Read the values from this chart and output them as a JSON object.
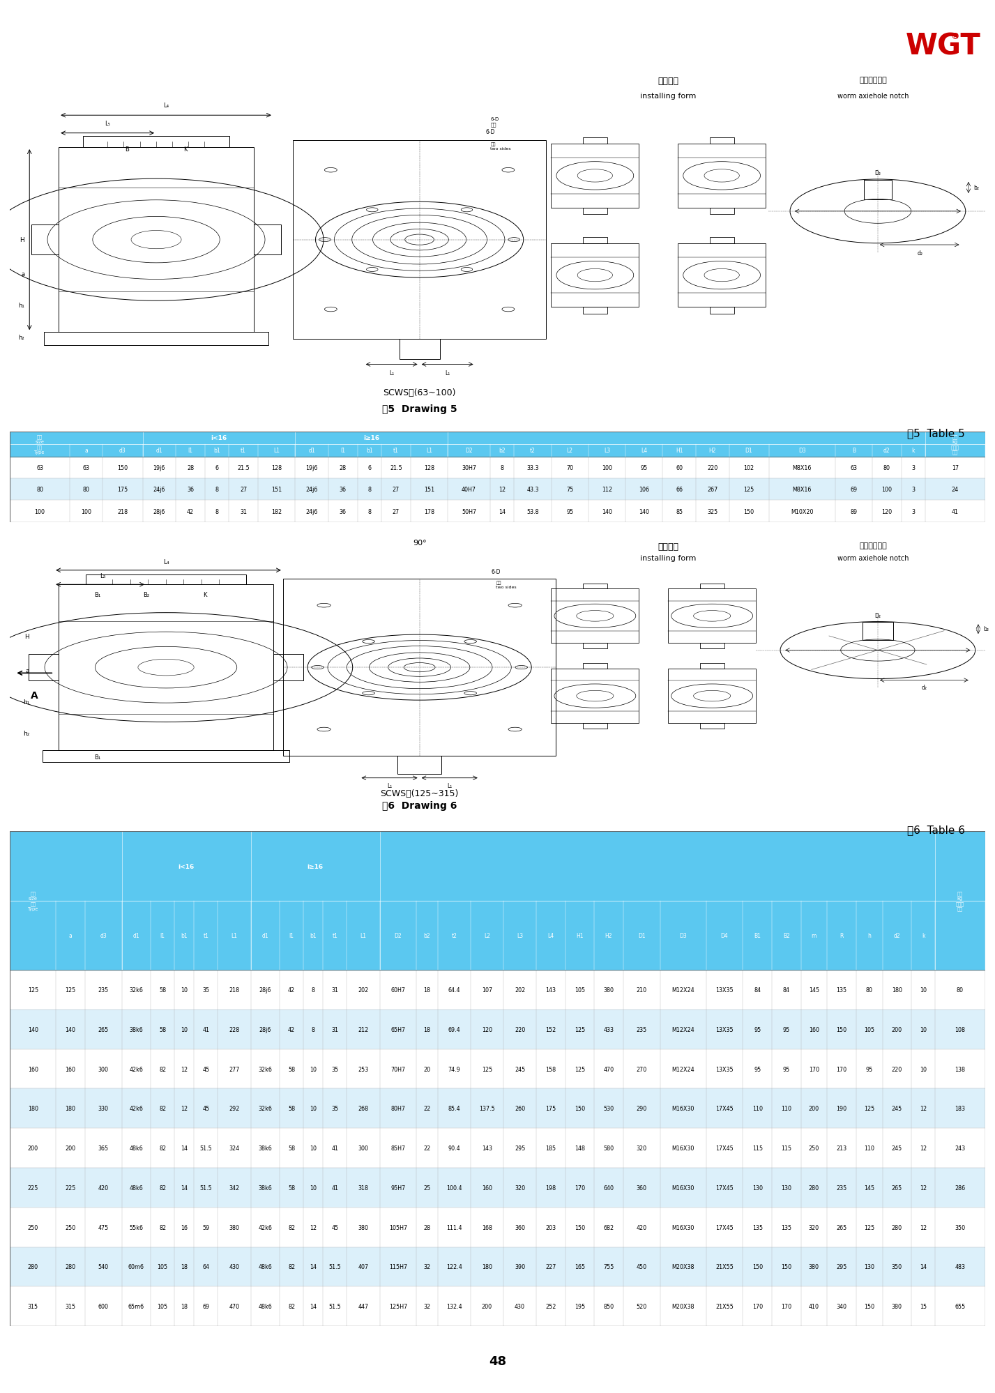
{
  "logo_text": "WGT",
  "logo_color": "#CC0000",
  "page_number": "48",
  "bg_color": "#FFFFFF",
  "drawing5_label1": "SCWS型(63~100)",
  "drawing5_label2": "图5  Drawing 5",
  "table5_label": "表5  Table 5",
  "drawing6_label1": "SCWS型(125~315)",
  "drawing6_label2": "图6  Drawing 6",
  "table6_label": "表6  Table 6",
  "table_header_bg": "#5BC8F0",
  "row_bg_even": "#FFFFFF",
  "row_bg_odd": "#DCF0FA",
  "header_text_color": "#FFFFFF",
  "cell_text_color": "#000000",
  "installing_form_cn": "装配型式",
  "installing_form_en": "installing form",
  "worm_notch_cn": "蜗轮轴孔键槽",
  "worm_notch_en": "worm axiehole notch",
  "table5_rows": [
    [
      "63",
      "63",
      "150",
      "19j6",
      "28",
      "6",
      "21.5",
      "128",
      "19j6",
      "28",
      "6",
      "21.5",
      "128",
      "30H7",
      "8",
      "33.3",
      "70",
      "100",
      "95",
      "60",
      "220",
      "102",
      "M8X16",
      "63",
      "80",
      "3",
      "17"
    ],
    [
      "80",
      "80",
      "175",
      "24j6",
      "36",
      "8",
      "27",
      "151",
      "24j6",
      "36",
      "8",
      "27",
      "151",
      "40H7",
      "12",
      "43.3",
      "75",
      "112",
      "106",
      "66",
      "267",
      "125",
      "M8X16",
      "69",
      "100",
      "3",
      "24"
    ],
    [
      "100",
      "100",
      "218",
      "28j6",
      "42",
      "8",
      "31",
      "182",
      "24j6",
      "36",
      "8",
      "27",
      "178",
      "50H7",
      "14",
      "53.8",
      "95",
      "140",
      "140",
      "85",
      "325",
      "150",
      "M10X20",
      "89",
      "120",
      "3",
      "41"
    ]
  ],
  "table5_sub_headers": [
    "尺寸\nsize\n型号\nType",
    "a",
    "d3",
    "d1",
    "l1",
    "b1",
    "t1",
    "L1",
    "d1",
    "l1",
    "b1",
    "t1",
    "L1",
    "D2",
    "b2",
    "t2",
    "L2",
    "L3",
    "L4",
    "H1",
    "H2",
    "D1",
    "D3",
    "B",
    "d2",
    "k",
    "重量\nkg\n不包括\n油量"
  ],
  "table5_col_widths": [
    4.5,
    2.5,
    3.0,
    2.5,
    2.2,
    1.8,
    2.2,
    2.8,
    2.5,
    2.2,
    1.8,
    2.2,
    2.8,
    3.2,
    1.8,
    2.8,
    2.8,
    2.8,
    2.8,
    2.5,
    2.5,
    3.0,
    5.0,
    2.8,
    2.2,
    1.8,
    4.5
  ],
  "table6_rows": [
    [
      "125",
      "125",
      "235",
      "32k6",
      "58",
      "10",
      "35",
      "218",
      "28j6",
      "42",
      "8",
      "31",
      "202",
      "60H7",
      "18",
      "64.4",
      "107",
      "202",
      "143",
      "105",
      "380",
      "210",
      "M12X24",
      "13X35",
      "84",
      "84",
      "145",
      "135",
      "80",
      "180",
      "10",
      "80"
    ],
    [
      "140",
      "140",
      "265",
      "38k6",
      "58",
      "10",
      "41",
      "228",
      "28j6",
      "42",
      "8",
      "31",
      "212",
      "65H7",
      "18",
      "69.4",
      "120",
      "220",
      "152",
      "125",
      "433",
      "235",
      "M12X24",
      "13X35",
      "95",
      "95",
      "160",
      "150",
      "105",
      "200",
      "10",
      "108"
    ],
    [
      "160",
      "160",
      "300",
      "42k6",
      "82",
      "12",
      "45",
      "277",
      "32k6",
      "58",
      "10",
      "35",
      "253",
      "70H7",
      "20",
      "74.9",
      "125",
      "245",
      "158",
      "125",
      "470",
      "270",
      "M12X24",
      "13X35",
      "95",
      "95",
      "170",
      "170",
      "95",
      "220",
      "10",
      "138"
    ],
    [
      "180",
      "180",
      "330",
      "42k6",
      "82",
      "12",
      "45",
      "292",
      "32k6",
      "58",
      "10",
      "35",
      "268",
      "80H7",
      "22",
      "85.4",
      "137.5",
      "260",
      "175",
      "150",
      "530",
      "290",
      "M16X30",
      "17X45",
      "110",
      "110",
      "200",
      "190",
      "125",
      "245",
      "12",
      "183"
    ],
    [
      "200",
      "200",
      "365",
      "48k6",
      "82",
      "14",
      "51.5",
      "324",
      "38k6",
      "58",
      "10",
      "41",
      "300",
      "85H7",
      "22",
      "90.4",
      "143",
      "295",
      "185",
      "148",
      "580",
      "320",
      "M16X30",
      "17X45",
      "115",
      "115",
      "250",
      "213",
      "110",
      "245",
      "12",
      "243"
    ],
    [
      "225",
      "225",
      "420",
      "48k6",
      "82",
      "14",
      "51.5",
      "342",
      "38k6",
      "58",
      "10",
      "41",
      "318",
      "95H7",
      "25",
      "100.4",
      "160",
      "320",
      "198",
      "170",
      "640",
      "360",
      "M16X30",
      "17X45",
      "130",
      "130",
      "280",
      "235",
      "145",
      "265",
      "12",
      "286"
    ],
    [
      "250",
      "250",
      "475",
      "55k6",
      "82",
      "16",
      "59",
      "380",
      "42k6",
      "82",
      "12",
      "45",
      "380",
      "105H7",
      "28",
      "111.4",
      "168",
      "360",
      "203",
      "150",
      "682",
      "420",
      "M16X30",
      "17X45",
      "135",
      "135",
      "320",
      "265",
      "125",
      "280",
      "12",
      "350"
    ],
    [
      "280",
      "280",
      "540",
      "60m6",
      "105",
      "18",
      "64",
      "430",
      "48k6",
      "82",
      "14",
      "51.5",
      "407",
      "115H7",
      "32",
      "122.4",
      "180",
      "390",
      "227",
      "165",
      "755",
      "450",
      "M20X38",
      "21X55",
      "150",
      "150",
      "380",
      "295",
      "130",
      "350",
      "14",
      "483"
    ],
    [
      "315",
      "315",
      "600",
      "65m6",
      "105",
      "18",
      "69",
      "470",
      "48k6",
      "82",
      "14",
      "51.5",
      "447",
      "125H7",
      "32",
      "132.4",
      "200",
      "430",
      "252",
      "195",
      "850",
      "520",
      "M20X38",
      "21X55",
      "170",
      "170",
      "410",
      "340",
      "150",
      "380",
      "15",
      "655"
    ]
  ],
  "table6_sub_headers": [
    "尺寸\nsize\n型号\nType",
    "a",
    "d3",
    "d1",
    "l1",
    "b1",
    "t1",
    "L1",
    "d1",
    "l1",
    "b1",
    "t1",
    "L1",
    "D2",
    "b2",
    "t2",
    "L2",
    "L3",
    "L4",
    "H1",
    "H2",
    "D1",
    "D3",
    "D4",
    "B1",
    "B2",
    "m",
    "R",
    "h",
    "d2",
    "k",
    "重量\nkg\n不包括\n油量"
  ],
  "table6_col_widths": [
    3.5,
    2.2,
    2.8,
    2.2,
    1.8,
    1.5,
    1.8,
    2.5,
    2.2,
    1.8,
    1.5,
    1.8,
    2.5,
    2.8,
    1.6,
    2.5,
    2.5,
    2.5,
    2.2,
    2.2,
    2.2,
    2.8,
    3.5,
    2.8,
    2.2,
    2.2,
    2.0,
    2.2,
    2.0,
    2.2,
    1.8,
    3.8
  ]
}
